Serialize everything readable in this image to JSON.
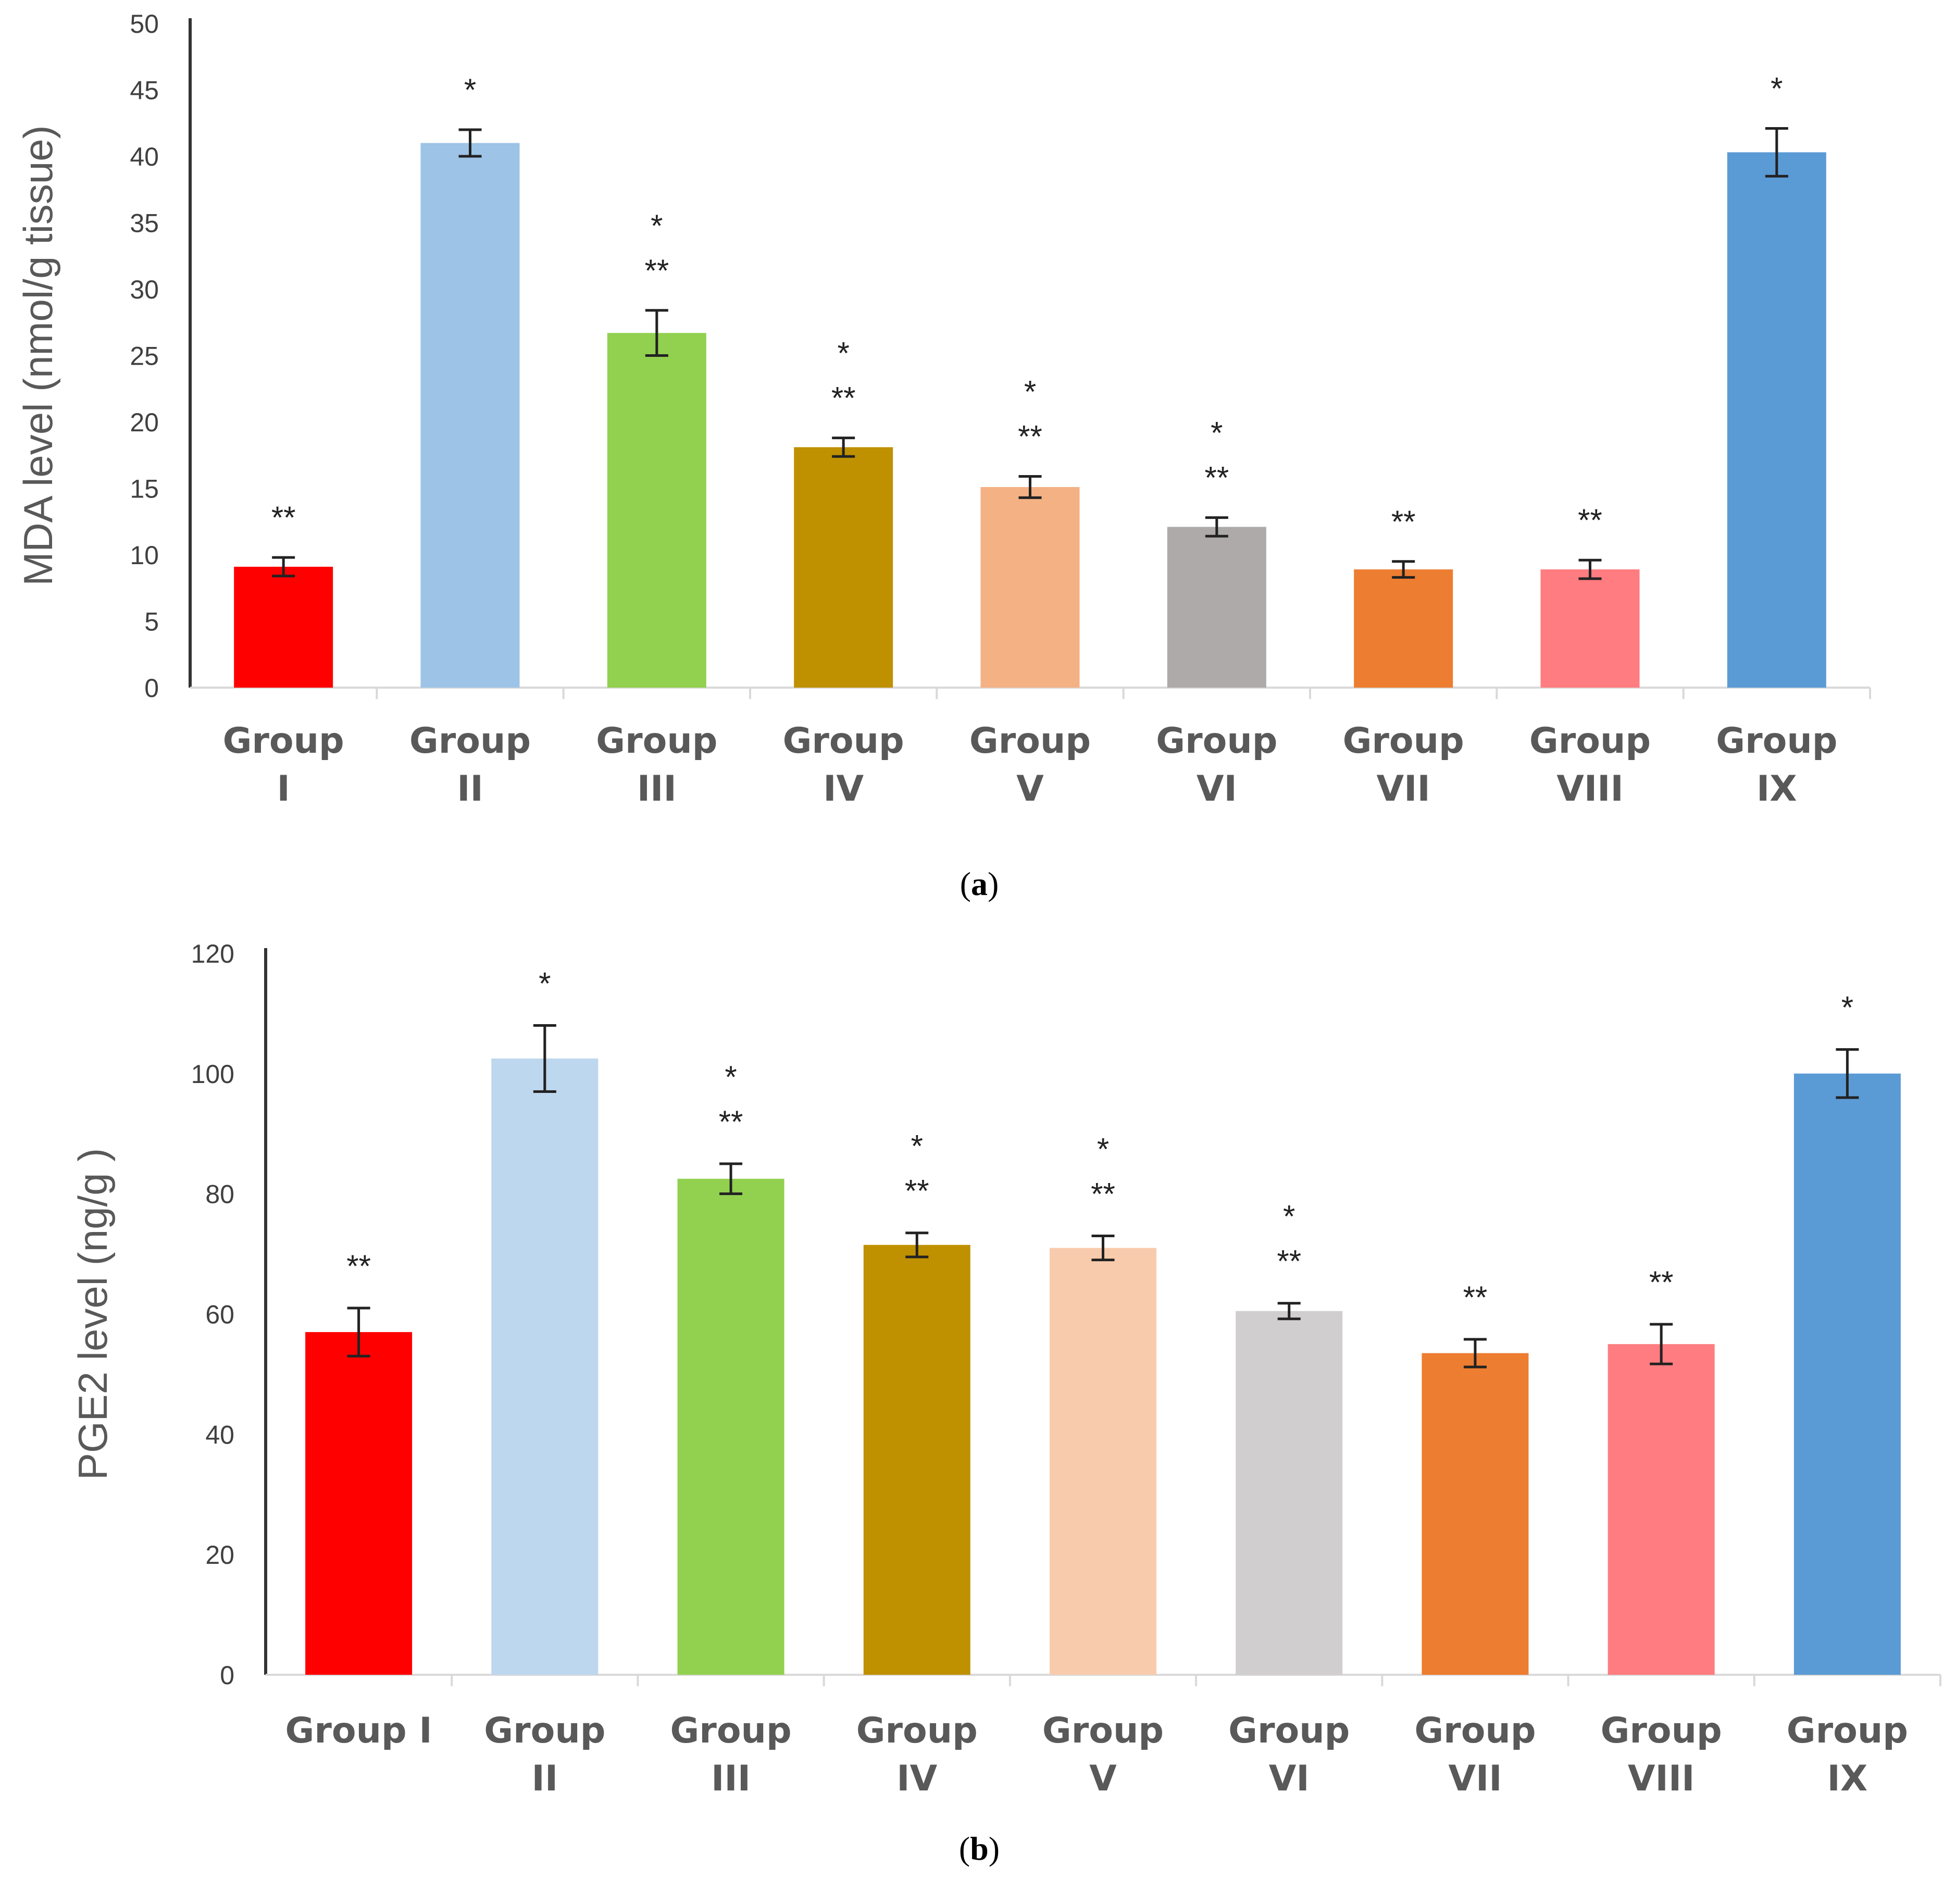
{
  "chart_data": [
    {
      "type": "bar",
      "panel_label": "a",
      "ylabel": "MDA level (nmol/g tissue)",
      "ylim": [
        0,
        50
      ],
      "yticks": [
        0,
        5,
        10,
        15,
        20,
        25,
        30,
        35,
        40,
        45,
        50
      ],
      "categories": [
        [
          "Group",
          "I"
        ],
        [
          "Group",
          "II"
        ],
        [
          "Group",
          "III"
        ],
        [
          "Group",
          "IV"
        ],
        [
          "Group",
          "V"
        ],
        [
          "Group",
          "VI"
        ],
        [
          "Group",
          "VII"
        ],
        [
          "Group",
          "VIII"
        ],
        [
          "Group",
          "IX"
        ]
      ],
      "values": [
        9.1,
        41.0,
        26.7,
        18.1,
        15.1,
        12.1,
        8.9,
        8.9,
        40.3
      ],
      "errors": [
        0.7,
        1.0,
        1.7,
        0.7,
        0.8,
        0.7,
        0.6,
        0.7,
        1.8
      ],
      "colors": [
        "#ff0000",
        "#9dc3e6",
        "#92d050",
        "#bf9000",
        "#f4b183",
        "#aeaaaa",
        "#ed7d31",
        "#ff7c80",
        "#5b9bd5"
      ],
      "significance": [
        [
          "**"
        ],
        [
          "*"
        ],
        [
          "*",
          "**"
        ],
        [
          "*",
          "**"
        ],
        [
          "*",
          "**"
        ],
        [
          "*",
          "**"
        ],
        [
          "**"
        ],
        [
          "**"
        ],
        [
          "*"
        ]
      ],
      "grid": false
    },
    {
      "type": "bar",
      "panel_label": "b",
      "ylabel": "PGE2 level (ng/g )",
      "ylim": [
        0,
        120
      ],
      "yticks": [
        0,
        20,
        40,
        60,
        80,
        100,
        120
      ],
      "categories": [
        [
          "Group I"
        ],
        [
          "Group",
          "II"
        ],
        [
          "Group",
          "III"
        ],
        [
          "Group",
          "IV"
        ],
        [
          "Group",
          "V"
        ],
        [
          "Group",
          "VI"
        ],
        [
          "Group",
          "VII"
        ],
        [
          "Group",
          "VIII"
        ],
        [
          "Group",
          "IX"
        ]
      ],
      "values": [
        57,
        102.5,
        82.5,
        71.5,
        71,
        60.5,
        53.5,
        55,
        100
      ],
      "errors": [
        4.0,
        5.5,
        2.5,
        2.0,
        2.0,
        1.3,
        2.3,
        3.3,
        4.0
      ],
      "colors": [
        "#ff0000",
        "#bdd7ee",
        "#92d050",
        "#bf9000",
        "#f8cbad",
        "#d0cece",
        "#ed7d31",
        "#ff7c80",
        "#5b9bd5"
      ],
      "significance": [
        [
          "**"
        ],
        [
          "*"
        ],
        [
          "*",
          "**"
        ],
        [
          "*",
          "**"
        ],
        [
          "*",
          "**"
        ],
        [
          "*",
          "**"
        ],
        [
          "**"
        ],
        [
          "**"
        ],
        [
          "*"
        ]
      ],
      "grid": false
    }
  ]
}
